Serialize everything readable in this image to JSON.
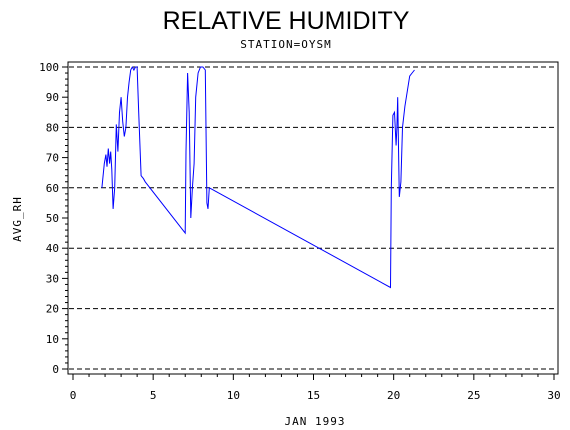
{
  "chart_data": {
    "type": "line",
    "title": "RELATIVE HUMIDITY",
    "subtitle": "STATION=OYSM",
    "xlabel": "JAN 1993",
    "ylabel": "AVG_RH",
    "xlim": [
      0,
      30
    ],
    "ylim": [
      0,
      100
    ],
    "x_ticks": [
      0,
      5,
      10,
      15,
      20,
      25,
      30
    ],
    "y_ticks": [
      0,
      10,
      20,
      30,
      40,
      50,
      60,
      70,
      80,
      90,
      100
    ],
    "x_tick_labels": [
      "0",
      "5",
      "10",
      "15",
      "20",
      "25",
      "30"
    ],
    "y_tick_labels": [
      "0",
      "10",
      "20",
      "30",
      "40",
      "50",
      "60",
      "70",
      "80",
      "90",
      "100"
    ],
    "grid_y_values": [
      0,
      20,
      40,
      60,
      80,
      100
    ],
    "grid": "horizontal dashed",
    "line_color": "#0000ff",
    "series": [
      {
        "x": [
          1.8,
          1.95,
          2.05,
          2.12,
          2.2,
          2.28,
          2.35,
          2.42,
          2.5,
          2.6,
          2.7,
          2.8,
          2.9,
          3.0,
          3.1,
          3.2,
          3.3,
          3.4,
          3.5,
          3.6,
          3.7,
          3.8,
          3.9,
          4.0,
          4.1,
          4.25,
          4.4,
          4.5,
          7.0,
          7.05,
          7.15,
          7.25,
          7.35,
          7.45,
          7.55,
          7.65,
          7.8,
          7.95,
          8.1,
          8.25,
          8.35,
          8.42,
          8.5,
          19.8,
          19.85,
          19.95,
          20.05,
          20.15,
          20.2,
          20.25,
          20.35,
          20.45,
          20.55,
          20.7,
          20.85,
          21.0,
          21.15,
          21.3
        ],
        "y": [
          60,
          68,
          71,
          67,
          73,
          68,
          72,
          66,
          53,
          60,
          81,
          72,
          85,
          90,
          82,
          77,
          80,
          90,
          95,
          99,
          100,
          99,
          100,
          100,
          85,
          64,
          63,
          62,
          45,
          72,
          98,
          85,
          50,
          60,
          68,
          90,
          98,
          100,
          100,
          99,
          55,
          53,
          60,
          27,
          60,
          84,
          85,
          74,
          80,
          90,
          57,
          62,
          80,
          87,
          92,
          97,
          98,
          99
        ]
      }
    ]
  }
}
